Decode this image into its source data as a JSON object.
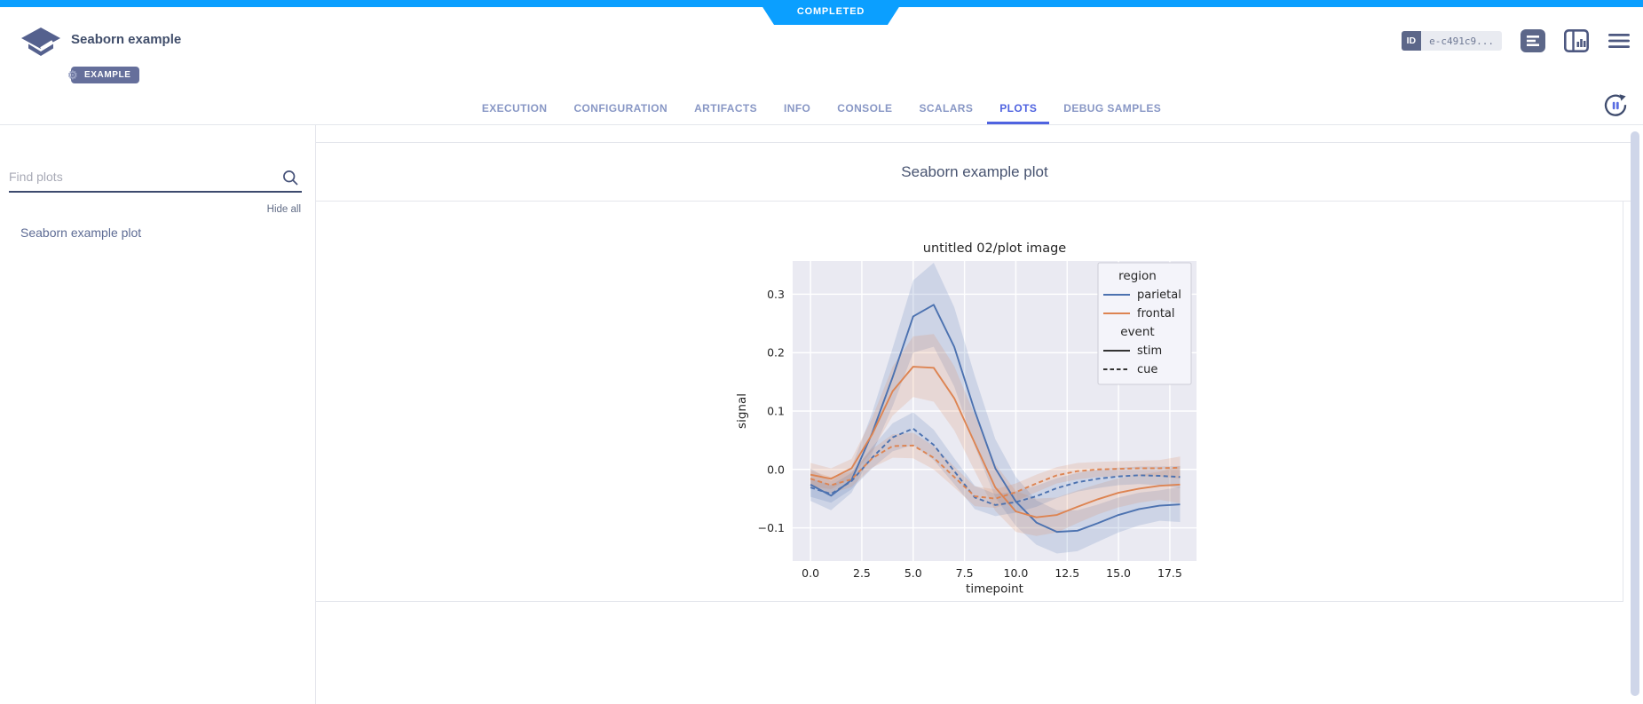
{
  "status": {
    "label": "COMPLETED",
    "color": "#0b9fff"
  },
  "header": {
    "title": "Seaborn example",
    "type_badge": "EXAMPLE",
    "id_chip": {
      "label": "ID",
      "value": "e-c491c9..."
    },
    "icons": [
      "app-logo",
      "experiment-details-icon",
      "info-panel-icon",
      "menu-icon"
    ]
  },
  "tabs": {
    "active_color": "#4f63e0",
    "items": [
      {
        "label": "EXECUTION",
        "active": false
      },
      {
        "label": "CONFIGURATION",
        "active": false
      },
      {
        "label": "ARTIFACTS",
        "active": false
      },
      {
        "label": "INFO",
        "active": false
      },
      {
        "label": "CONSOLE",
        "active": false
      },
      {
        "label": "SCALARS",
        "active": false
      },
      {
        "label": "PLOTS",
        "active": true
      },
      {
        "label": "DEBUG SAMPLES",
        "active": false
      }
    ]
  },
  "sidebar": {
    "search_placeholder": "Find plots",
    "hide_all_label": "Hide all",
    "items": [
      {
        "label": "Seaborn example plot"
      }
    ]
  },
  "main": {
    "group_title": "Seaborn example plot"
  },
  "chart_data": {
    "type": "line",
    "title": "untitled 02/plot image",
    "xlabel": "timepoint",
    "ylabel": "signal",
    "x": [
      0,
      1,
      2,
      3,
      4,
      5,
      6,
      7,
      8,
      9,
      10,
      11,
      12,
      13,
      14,
      15,
      16,
      17,
      18
    ],
    "xticks": [
      0.0,
      2.5,
      5.0,
      7.5,
      10.0,
      12.5,
      15.0,
      17.5
    ],
    "yticks": [
      -0.1,
      0.0,
      0.1,
      0.2,
      0.3
    ],
    "xlim": [
      -0.87,
      18.8
    ],
    "ylim": [
      -0.157,
      0.357
    ],
    "background": "#eaeaf2",
    "grid_color": "#ffffff",
    "text_color": "#262626",
    "grid": true,
    "series": [
      {
        "name": "parietal-stim",
        "region": "parietal",
        "event": "stim",
        "color": "#4c72b0",
        "dash": "solid",
        "values": [
          -0.026,
          -0.045,
          -0.018,
          0.062,
          0.158,
          0.262,
          0.282,
          0.21,
          0.1,
          0.002,
          -0.055,
          -0.091,
          -0.107,
          -0.105,
          -0.092,
          -0.078,
          -0.068,
          -0.062,
          -0.06
        ],
        "ci": [
          0.028,
          0.025,
          0.022,
          0.035,
          0.05,
          0.062,
          0.072,
          0.068,
          0.06,
          0.05,
          0.042,
          0.038,
          0.037,
          0.035,
          0.032,
          0.03,
          0.028,
          0.026,
          0.03
        ]
      },
      {
        "name": "frontal-stim",
        "region": "frontal",
        "event": "stim",
        "color": "#dd8452",
        "dash": "solid",
        "values": [
          -0.009,
          -0.016,
          0.002,
          0.06,
          0.134,
          0.176,
          0.174,
          0.122,
          0.045,
          -0.031,
          -0.072,
          -0.082,
          -0.078,
          -0.064,
          -0.051,
          -0.04,
          -0.033,
          -0.028,
          -0.026
        ],
        "ci": [
          0.02,
          0.018,
          0.016,
          0.028,
          0.042,
          0.052,
          0.058,
          0.055,
          0.048,
          0.04,
          0.035,
          0.032,
          0.03,
          0.028,
          0.026,
          0.025,
          0.024,
          0.024,
          0.032
        ]
      },
      {
        "name": "parietal-cue",
        "region": "parietal",
        "event": "cue",
        "color": "#4c72b0",
        "dash": "dashed",
        "values": [
          -0.031,
          -0.042,
          -0.02,
          0.02,
          0.055,
          0.07,
          0.042,
          -0.003,
          -0.048,
          -0.061,
          -0.056,
          -0.046,
          -0.032,
          -0.022,
          -0.016,
          -0.012,
          -0.01,
          -0.011,
          -0.013
        ],
        "ci": [
          0.016,
          0.015,
          0.014,
          0.018,
          0.024,
          0.028,
          0.026,
          0.022,
          0.02,
          0.019,
          0.018,
          0.018,
          0.017,
          0.016,
          0.016,
          0.015,
          0.015,
          0.016,
          0.019
        ]
      },
      {
        "name": "frontal-cue",
        "region": "frontal",
        "event": "cue",
        "color": "#dd8452",
        "dash": "dashed",
        "values": [
          -0.016,
          -0.027,
          -0.017,
          0.019,
          0.04,
          0.041,
          0.02,
          -0.013,
          -0.046,
          -0.05,
          -0.039,
          -0.024,
          -0.01,
          -0.003,
          0.0,
          0.001,
          0.002,
          0.002,
          0.003
        ],
        "ci": [
          0.014,
          0.014,
          0.013,
          0.016,
          0.02,
          0.022,
          0.02,
          0.018,
          0.017,
          0.016,
          0.015,
          0.015,
          0.014,
          0.014,
          0.013,
          0.013,
          0.013,
          0.014,
          0.019
        ]
      }
    ],
    "legend": {
      "position": "upper right",
      "groups": [
        {
          "title": "region",
          "entries": [
            {
              "label": "parietal",
              "color": "#4c72b0",
              "dash": "solid"
            },
            {
              "label": "frontal",
              "color": "#dd8452",
              "dash": "solid"
            }
          ]
        },
        {
          "title": "event",
          "entries": [
            {
              "label": "stim",
              "color": "#333333",
              "dash": "solid"
            },
            {
              "label": "cue",
              "color": "#333333",
              "dash": "dashed"
            }
          ]
        }
      ]
    }
  }
}
